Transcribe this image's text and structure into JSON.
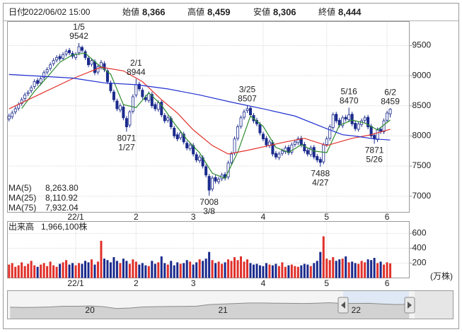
{
  "header": {
    "fields": [
      {
        "label": "日付",
        "value": "2022/06/02 15:00",
        "color": "#222222"
      },
      {
        "label": "始値",
        "value": "8,366",
        "color": "#222222"
      },
      {
        "label": "高値",
        "value": "8,459",
        "color": "#e0302a"
      },
      {
        "label": "安値",
        "value": "8,306",
        "color": "#2e8b2e"
      },
      {
        "label": "終値",
        "value": "8,444",
        "color": "#222222"
      }
    ]
  },
  "chart_data": [
    {
      "type": "candlestick",
      "categories": [
        null,
        null,
        null,
        null,
        null,
        null,
        null,
        null,
        null,
        null,
        null,
        null,
        null,
        null,
        null,
        null,
        null,
        null,
        null,
        null,
        null,
        "22/1",
        null,
        null,
        null,
        null,
        null,
        null,
        null,
        null,
        null,
        null,
        null,
        null,
        null,
        null,
        null,
        null,
        null,
        null,
        "2",
        null,
        null,
        null,
        null,
        null,
        null,
        null,
        null,
        null,
        null,
        null,
        null,
        null,
        null,
        null,
        null,
        null,
        "3",
        null,
        null,
        null,
        null,
        null,
        null,
        null,
        null,
        null,
        null,
        null,
        null,
        null,
        null,
        null,
        null,
        null,
        null,
        null,
        null,
        null,
        "4",
        null,
        null,
        null,
        null,
        null,
        null,
        null,
        null,
        null,
        null,
        null,
        null,
        null,
        null,
        null,
        null,
        null,
        null,
        null,
        "5",
        null,
        null,
        null,
        null,
        null,
        null,
        null,
        null,
        null,
        null,
        null,
        null,
        null,
        null,
        null,
        null,
        null,
        null,
        "6",
        null
      ],
      "xlim": [
        -0.5,
        126
      ],
      "ylim": [
        6733,
        9898
      ],
      "yticks": [
        7000,
        7500,
        8000,
        8500,
        9000,
        9500
      ],
      "grid": true,
      "up_color": "#ffffff",
      "down_color": "#1a2a8c",
      "edge_color": "#1a2a8c",
      "open": [
        8280,
        8320,
        8400,
        8460,
        8540,
        8620,
        8700,
        8750,
        8820,
        8920,
        8880,
        8970,
        9060,
        9120,
        9200,
        9260,
        9320,
        9290,
        9360,
        9420,
        9370,
        9300,
        9380,
        9470,
        9400,
        9290,
        9190,
        9230,
        9060,
        9140,
        9200,
        9080,
        8880,
        8730,
        8580,
        8430,
        8480,
        8290,
        8180,
        8410,
        8680,
        8860,
        8760,
        8640,
        8590,
        8690,
        8520,
        8440,
        8560,
        8340,
        8260,
        8290,
        8130,
        8020,
        7970,
        8030,
        7880,
        7790,
        7840,
        7690,
        7590,
        7640,
        7490,
        7330,
        7120,
        7310,
        7240,
        7290,
        7360,
        7320,
        7560,
        7720,
        7960,
        8160,
        8310,
        8420,
        8460,
        8340,
        8260,
        8190,
        8030,
        7960,
        7840,
        7890,
        7710,
        7640,
        7710,
        7740,
        7810,
        7730,
        7860,
        7890,
        7960,
        7860,
        7760,
        7690,
        7810,
        7660,
        7610,
        7570,
        7860,
        7960,
        8140,
        8360,
        8260,
        8170,
        8310,
        8270,
        8360,
        8210,
        8110,
        8190,
        8260,
        8310,
        8160,
        8010,
        7940,
        8110,
        8070,
        8260,
        8366
      ],
      "high": [
        8370,
        8420,
        8490,
        8560,
        8640,
        8720,
        8760,
        8840,
        8940,
        8960,
        8990,
        9090,
        9140,
        9220,
        9290,
        9340,
        9360,
        9390,
        9440,
        9460,
        9410,
        9390,
        9542,
        9500,
        9430,
        9330,
        9290,
        9270,
        9190,
        9260,
        9240,
        9110,
        8920,
        8770,
        8620,
        8540,
        8520,
        8330,
        8430,
        8690,
        8944,
        8900,
        8800,
        8680,
        8740,
        8730,
        8560,
        8590,
        8600,
        8380,
        8340,
        8330,
        8170,
        8060,
        8090,
        8070,
        7920,
        7890,
        7880,
        7730,
        7690,
        7680,
        7530,
        7370,
        7340,
        7350,
        7320,
        7390,
        7400,
        7590,
        7740,
        7990,
        8190,
        8340,
        8440,
        8507,
        8490,
        8380,
        8300,
        8230,
        8070,
        8000,
        7940,
        7930,
        7750,
        7740,
        7790,
        7840,
        7850,
        7890,
        7940,
        7990,
        8000,
        7900,
        7800,
        7840,
        7850,
        7700,
        7650,
        7890,
        7990,
        8190,
        8390,
        8400,
        8300,
        8340,
        8350,
        8470,
        8400,
        8250,
        8240,
        8290,
        8340,
        8350,
        8200,
        8050,
        8140,
        8150,
        8290,
        8420,
        8459
      ],
      "low": [
        8240,
        8280,
        8360,
        8420,
        8500,
        8580,
        8660,
        8710,
        8780,
        8830,
        8840,
        8930,
        9020,
        9080,
        9160,
        9220,
        9240,
        9250,
        9320,
        9340,
        9280,
        9260,
        9340,
        9380,
        9260,
        9140,
        9150,
        9010,
        9020,
        9100,
        9060,
        8860,
        8710,
        8560,
        8410,
        8390,
        8260,
        8071,
        8140,
        8370,
        8640,
        8740,
        8610,
        8560,
        8550,
        8460,
        8410,
        8400,
        8310,
        8210,
        8220,
        8110,
        7960,
        7910,
        7930,
        7860,
        7760,
        7750,
        7660,
        7560,
        7550,
        7460,
        7310,
        7008,
        7080,
        7210,
        7200,
        7250,
        7260,
        7280,
        7520,
        7680,
        7920,
        8120,
        8270,
        8380,
        8310,
        8210,
        8160,
        8010,
        7910,
        7810,
        7800,
        7660,
        7610,
        7600,
        7670,
        7700,
        7680,
        7690,
        7820,
        7850,
        7810,
        7710,
        7660,
        7650,
        7610,
        7560,
        7488,
        7530,
        7820,
        7920,
        8100,
        8210,
        8140,
        8130,
        8240,
        8230,
        8160,
        8080,
        8070,
        8150,
        8220,
        8110,
        7960,
        7871,
        7900,
        8030,
        8030,
        8220,
        8306
      ],
      "close": [
        8330,
        8380,
        8450,
        8520,
        8600,
        8680,
        8720,
        8800,
        8900,
        8870,
        8950,
        9050,
        9100,
        9180,
        9250,
        9300,
        9280,
        9350,
        9400,
        9380,
        9320,
        9350,
        9480,
        9420,
        9300,
        9180,
        9250,
        9050,
        9150,
        9220,
        9100,
        8900,
        8750,
        8600,
        8450,
        8500,
        8300,
        8150,
        8400,
        8650,
        8850,
        8780,
        8650,
        8600,
        8700,
        8500,
        8450,
        8550,
        8350,
        8250,
        8300,
        8150,
        8000,
        7950,
        8050,
        7900,
        7800,
        7850,
        7700,
        7600,
        7650,
        7500,
        7350,
        7100,
        7300,
        7250,
        7280,
        7350,
        7300,
        7550,
        7700,
        7950,
        8150,
        8300,
        8400,
        8450,
        8350,
        8250,
        8200,
        8050,
        7950,
        7850,
        7900,
        7700,
        7650,
        7700,
        7750,
        7800,
        7720,
        7850,
        7900,
        7950,
        7850,
        7750,
        7700,
        7800,
        7650,
        7600,
        7560,
        7850,
        7950,
        8150,
        8350,
        8250,
        8180,
        8300,
        8280,
        8350,
        8200,
        8120,
        8200,
        8250,
        8300,
        8150,
        8000,
        7950,
        8100,
        8080,
        8250,
        8380,
        8444
      ],
      "series": [
        {
          "name": "MA(5)",
          "color": "#2e8b2e",
          "value_label": "8,263.80",
          "x": [
            4,
            8,
            12,
            16,
            20,
            24,
            28,
            32,
            36,
            40,
            44,
            48,
            52,
            56,
            60,
            64,
            68,
            72,
            76,
            80,
            84,
            88,
            92,
            96,
            100,
            104,
            108,
            112,
            116,
            120
          ],
          "values": [
            8456,
            8740,
            8974,
            9222,
            9346,
            9374,
            9186,
            9024,
            8520,
            8470,
            8716,
            8510,
            8210,
            7940,
            7720,
            7380,
            7296,
            7730,
            8330,
            8160,
            7810,
            7724,
            7854,
            7750,
            7722,
            8176,
            8262,
            8214,
            8100,
            8263.8
          ]
        },
        {
          "name": "MA(25)",
          "color": "#e0302a",
          "value_label": "8,110.92",
          "x": [
            0,
            10,
            20,
            29,
            36,
            42,
            48,
            53,
            58,
            64,
            69,
            75,
            81,
            87,
            93,
            100,
            108,
            114,
            120
          ],
          "values": [
            8450,
            8700,
            8950,
            9140,
            9080,
            8900,
            8600,
            8380,
            8100,
            7840,
            7700,
            7760,
            7830,
            7900,
            7960,
            7840,
            7960,
            8020,
            8110.92
          ]
        },
        {
          "name": "MA(75)",
          "color": "#2030d0",
          "value_label": "7,932.04",
          "x": [
            0,
            20,
            30,
            40,
            50,
            60,
            70,
            80,
            90,
            100,
            105,
            110,
            115,
            120
          ],
          "values": [
            9020,
            8960,
            8880,
            8850,
            8780,
            8680,
            8560,
            8450,
            8330,
            8120,
            8020,
            7990,
            7950,
            7932.04
          ]
        }
      ],
      "annotations": [
        {
          "x": 22,
          "date": "1/5",
          "value": 9542,
          "kind": "high"
        },
        {
          "x": 40,
          "date": "2/1",
          "value": 8944,
          "kind": "high"
        },
        {
          "x": 37,
          "date": "1/27",
          "value": 8071,
          "kind": "low"
        },
        {
          "x": 75,
          "date": "3/25",
          "value": 8507,
          "kind": "high"
        },
        {
          "x": 63,
          "date": "3/8",
          "value": 7008,
          "kind": "low"
        },
        {
          "x": 98,
          "date": "4/27",
          "value": 7488,
          "kind": "low"
        },
        {
          "x": 107,
          "date": "5/16",
          "value": 8470,
          "kind": "high"
        },
        {
          "x": 115,
          "date": "5/26",
          "value": 7871,
          "kind": "low"
        },
        {
          "x": 120,
          "date": "6/2",
          "value": 8459,
          "kind": "high"
        }
      ]
    },
    {
      "type": "bar",
      "name": "出来高",
      "last_value_label": "1,966,100株",
      "unit": "(万株)",
      "up_color": "#e0302a",
      "down_color": "#1a2a8c",
      "ylim": [
        0,
        760
      ],
      "yticks": [
        200,
        400,
        600
      ],
      "grid": true,
      "values": [
        180,
        200,
        150,
        170,
        210,
        160,
        190,
        230,
        170,
        150,
        180,
        200,
        160,
        220,
        170,
        150,
        190,
        210,
        240,
        180,
        200,
        170,
        200,
        190,
        230,
        210,
        250,
        180,
        220,
        500,
        260,
        240,
        210,
        280,
        230,
        200,
        260,
        230,
        190,
        250,
        220,
        180,
        200,
        170,
        160,
        230,
        190,
        210,
        290,
        200,
        180,
        230,
        170,
        210,
        190,
        200,
        240,
        220,
        180,
        210,
        250,
        230,
        260,
        350,
        240,
        200,
        220,
        190,
        210,
        250,
        230,
        280,
        240,
        290,
        220,
        250,
        200,
        180,
        190,
        170,
        160,
        200,
        180,
        170,
        190,
        160,
        210,
        150,
        170,
        180,
        160,
        150,
        170,
        190,
        180,
        160,
        200,
        230,
        350,
        560,
        260,
        240,
        280,
        230,
        250,
        260,
        290,
        210,
        220,
        200,
        190,
        230,
        210,
        250,
        240,
        270,
        200,
        220,
        180,
        210,
        196.61
      ]
    },
    {
      "type": "area",
      "color": "#8a8a8a",
      "xlim": [
        2019.38,
        2022.4
      ],
      "ylim": [
        0,
        52000
      ],
      "xticks": [
        {
          "value": 2020,
          "label": "20"
        },
        {
          "value": 2021,
          "label": "21"
        },
        {
          "value": 2022,
          "label": "22"
        }
      ],
      "x": [
        2019.4,
        2019.5,
        2019.6,
        2019.7,
        2019.8,
        2019.9,
        2020.0,
        2020.1,
        2020.2,
        2020.3,
        2020.4,
        2020.5,
        2020.6,
        2020.7,
        2020.8,
        2020.9,
        2021.0,
        2021.1,
        2021.2,
        2021.3,
        2021.4,
        2021.5,
        2021.6,
        2021.7,
        2021.8,
        2021.9,
        2022.0,
        2022.1,
        2022.2,
        2022.3,
        2022.4
      ],
      "values": [
        21500,
        21000,
        21300,
        22000,
        23300,
        23400,
        23800,
        22500,
        19000,
        20000,
        22000,
        22500,
        22800,
        23000,
        23500,
        26500,
        27500,
        28500,
        29500,
        29500,
        29000,
        28800,
        28500,
        29000,
        30000,
        28500,
        28700,
        28900,
        27500,
        26500,
        27000
      ]
    }
  ]
}
